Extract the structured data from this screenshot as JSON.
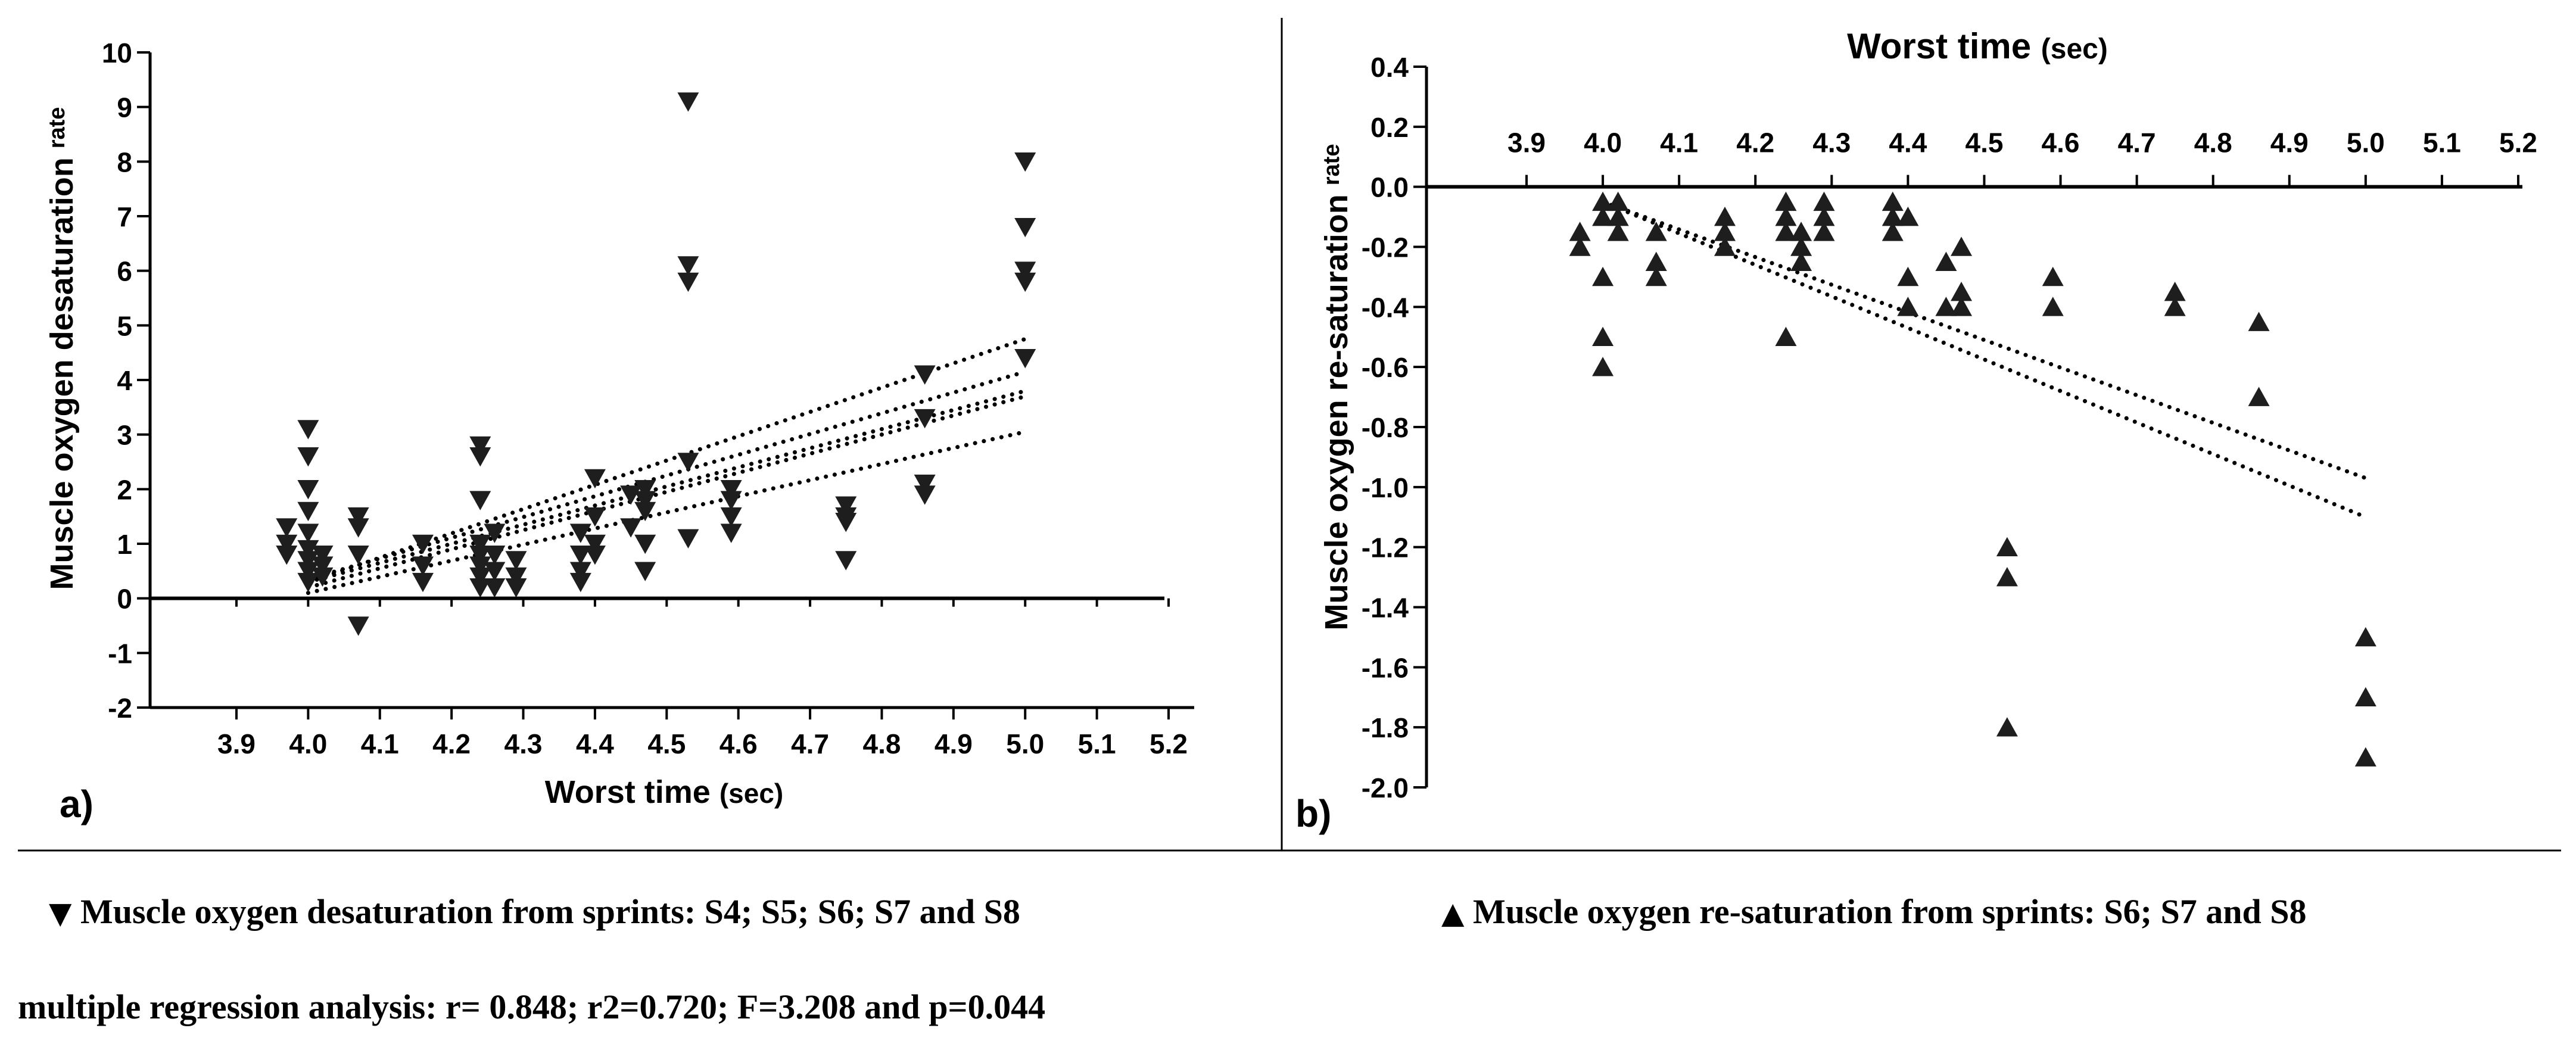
{
  "colors": {
    "ink": "#000000",
    "marker": "#1e1e1e",
    "background": "#ffffff"
  },
  "chart_data": [
    {
      "panel": "a)",
      "type": "scatter",
      "title": "",
      "xlabel": "Worst time",
      "xlabel_unit": "(sec)",
      "ylabel": "Muscle oxygen desaturation",
      "ylabel_sub": "rate",
      "xlim": [
        3.8,
        5.25
      ],
      "ylim": [
        -2,
        10
      ],
      "xticks": [
        "3.9",
        "4.0",
        "4.1",
        "4.2",
        "4.3",
        "4.4",
        "4.5",
        "4.6",
        "4.7",
        "4.8",
        "4.9",
        "5.0",
        "5.1",
        "5.2"
      ],
      "yticks": [
        "-2",
        "-1",
        "0",
        "1",
        "2",
        "3",
        "4",
        "5",
        "6",
        "7",
        "8",
        "9",
        "10"
      ],
      "marker": "triangle-down",
      "points": [
        [
          3.97,
          1.3
        ],
        [
          3.97,
          1.0
        ],
        [
          3.97,
          0.8
        ],
        [
          4.0,
          3.1
        ],
        [
          4.0,
          2.6
        ],
        [
          4.0,
          2.0
        ],
        [
          4.0,
          1.6
        ],
        [
          4.0,
          1.2
        ],
        [
          4.0,
          0.9
        ],
        [
          4.0,
          0.7
        ],
        [
          4.0,
          0.5
        ],
        [
          4.0,
          0.3
        ],
        [
          4.02,
          0.8
        ],
        [
          4.02,
          0.6
        ],
        [
          4.02,
          0.4
        ],
        [
          4.07,
          1.5
        ],
        [
          4.07,
          1.3
        ],
        [
          4.07,
          0.8
        ],
        [
          4.07,
          -0.5
        ],
        [
          4.16,
          1.0
        ],
        [
          4.16,
          0.6
        ],
        [
          4.16,
          0.3
        ],
        [
          4.24,
          2.8
        ],
        [
          4.24,
          2.6
        ],
        [
          4.24,
          1.8
        ],
        [
          4.24,
          1.0
        ],
        [
          4.24,
          0.8
        ],
        [
          4.24,
          0.6
        ],
        [
          4.24,
          0.4
        ],
        [
          4.24,
          0.2
        ],
        [
          4.26,
          1.2
        ],
        [
          4.26,
          0.8
        ],
        [
          4.26,
          0.5
        ],
        [
          4.26,
          0.2
        ],
        [
          4.29,
          0.7
        ],
        [
          4.29,
          0.4
        ],
        [
          4.29,
          0.2
        ],
        [
          4.38,
          1.2
        ],
        [
          4.38,
          0.8
        ],
        [
          4.38,
          0.5
        ],
        [
          4.38,
          0.3
        ],
        [
          4.4,
          2.2
        ],
        [
          4.4,
          1.5
        ],
        [
          4.4,
          1.0
        ],
        [
          4.4,
          0.8
        ],
        [
          4.45,
          1.9
        ],
        [
          4.45,
          1.3
        ],
        [
          4.47,
          2.0
        ],
        [
          4.47,
          1.8
        ],
        [
          4.47,
          1.6
        ],
        [
          4.47,
          1.0
        ],
        [
          4.47,
          0.5
        ],
        [
          4.53,
          9.1
        ],
        [
          4.53,
          6.1
        ],
        [
          4.53,
          5.8
        ],
        [
          4.53,
          2.5
        ],
        [
          4.53,
          1.1
        ],
        [
          4.59,
          2.0
        ],
        [
          4.59,
          1.8
        ],
        [
          4.59,
          1.5
        ],
        [
          4.59,
          1.2
        ],
        [
          4.75,
          1.7
        ],
        [
          4.75,
          1.5
        ],
        [
          4.75,
          1.4
        ],
        [
          4.75,
          0.7
        ],
        [
          4.86,
          4.1
        ],
        [
          4.86,
          3.3
        ],
        [
          4.86,
          2.1
        ],
        [
          4.86,
          1.9
        ],
        [
          5.0,
          8.0
        ],
        [
          5.0,
          6.8
        ],
        [
          5.0,
          6.0
        ],
        [
          5.0,
          5.8
        ],
        [
          5.0,
          4.4
        ]
      ],
      "regression_lines": [
        [
          [
            4.0,
            0.3
          ],
          [
            5.0,
            4.75
          ]
        ],
        [
          [
            4.0,
            0.35
          ],
          [
            5.0,
            4.15
          ]
        ],
        [
          [
            4.0,
            0.3
          ],
          [
            5.0,
            3.8
          ]
        ],
        [
          [
            4.0,
            0.2
          ],
          [
            5.0,
            3.7
          ]
        ],
        [
          [
            4.0,
            0.1
          ],
          [
            5.0,
            3.05
          ]
        ]
      ],
      "annotations": []
    },
    {
      "panel": "b)",
      "type": "scatter",
      "title": "Worst time",
      "title_unit": "(sec)",
      "xlabel": "",
      "ylabel": "Muscle oxygen re-saturation",
      "ylabel_sub": "rate",
      "xaxis_position": "top (at y=0)",
      "xlim": [
        3.8,
        5.25
      ],
      "ylim": [
        -2.0,
        0.4
      ],
      "xticks": [
        "3.9",
        "4.0",
        "4.1",
        "4.2",
        "4.3",
        "4.4",
        "4.5",
        "4.6",
        "4.7",
        "4.8",
        "4.9",
        "5.0",
        "5.1",
        "5.2"
      ],
      "yticks": [
        "0.4",
        "0.2",
        "0.0",
        "-0.2",
        "-0.4",
        "-0.6",
        "-0.8",
        "-1.0",
        "-1.2",
        "-1.4",
        "-1.6",
        "-1.8",
        "-2.0"
      ],
      "marker": "triangle-up",
      "points": [
        [
          3.97,
          -0.15
        ],
        [
          3.97,
          -0.2
        ],
        [
          4.0,
          -0.05
        ],
        [
          4.0,
          -0.1
        ],
        [
          4.0,
          -0.3
        ],
        [
          4.0,
          -0.5
        ],
        [
          4.0,
          -0.6
        ],
        [
          4.02,
          -0.05
        ],
        [
          4.02,
          -0.1
        ],
        [
          4.02,
          -0.15
        ],
        [
          4.07,
          -0.15
        ],
        [
          4.07,
          -0.25
        ],
        [
          4.07,
          -0.3
        ],
        [
          4.16,
          -0.1
        ],
        [
          4.16,
          -0.15
        ],
        [
          4.16,
          -0.2
        ],
        [
          4.24,
          -0.05
        ],
        [
          4.24,
          -0.1
        ],
        [
          4.24,
          -0.15
        ],
        [
          4.24,
          -0.5
        ],
        [
          4.26,
          -0.15
        ],
        [
          4.26,
          -0.2
        ],
        [
          4.26,
          -0.25
        ],
        [
          4.29,
          -0.05
        ],
        [
          4.29,
          -0.1
        ],
        [
          4.29,
          -0.15
        ],
        [
          4.38,
          -0.05
        ],
        [
          4.38,
          -0.1
        ],
        [
          4.38,
          -0.15
        ],
        [
          4.4,
          -0.1
        ],
        [
          4.4,
          -0.3
        ],
        [
          4.4,
          -0.4
        ],
        [
          4.45,
          -0.25
        ],
        [
          4.45,
          -0.4
        ],
        [
          4.47,
          -0.2
        ],
        [
          4.47,
          -0.35
        ],
        [
          4.47,
          -0.4
        ],
        [
          4.53,
          -1.2
        ],
        [
          4.53,
          -1.3
        ],
        [
          4.53,
          -1.8
        ],
        [
          4.59,
          -0.3
        ],
        [
          4.59,
          -0.4
        ],
        [
          4.75,
          -0.35
        ],
        [
          4.75,
          -0.4
        ],
        [
          4.86,
          -0.45
        ],
        [
          4.86,
          -0.7
        ],
        [
          5.0,
          -1.5
        ],
        [
          5.0,
          -1.7
        ],
        [
          5.0,
          -1.9
        ]
      ],
      "regression_lines": [
        [
          [
            4.0,
            -0.05
          ],
          [
            5.0,
            -0.97
          ]
        ],
        [
          [
            4.0,
            -0.05
          ],
          [
            5.0,
            -1.1
          ]
        ]
      ]
    }
  ],
  "captions": {
    "legend_a_symbol": "▼",
    "legend_a": "Muscle oxygen desaturation from sprints: S4; S5; S6; S7 and S8",
    "legend_b_symbol": "▲",
    "legend_b": "Muscle oxygen re-saturation from sprints: S6; S7 and S8",
    "stats": "multiple regression analysis: r= 0.848; r2=0.720; F=3.208 and p=0.044"
  }
}
